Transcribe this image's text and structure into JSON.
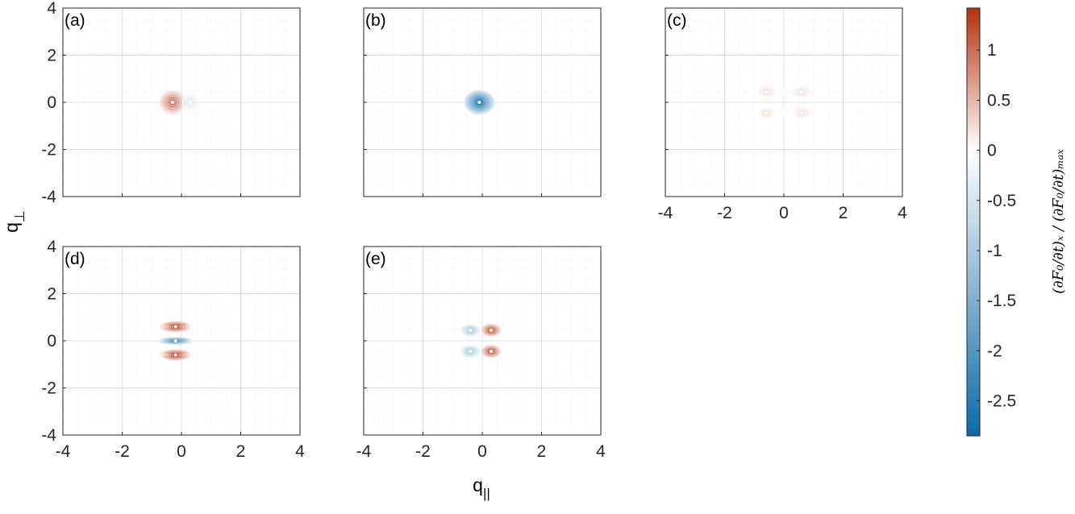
{
  "chart_data": {
    "type": "contour",
    "xlabel": "q",
    "xlabel_sub": "||",
    "ylabel": "q",
    "ylabel_sub": "⊥",
    "xlim": [
      -4,
      4
    ],
    "ylim": [
      -4,
      4
    ],
    "xticks": [
      "-4",
      "-2",
      "0",
      "2",
      "4"
    ],
    "yticks": [
      "-4",
      "-2",
      "0",
      "2",
      "4"
    ],
    "grid": true,
    "minor_grid": true,
    "panels": [
      {
        "label": "(a)",
        "lobes": [
          {
            "x": -0.3,
            "y": 0.0,
            "amp": 1.4,
            "sx": 0.42,
            "sy": 0.48
          },
          {
            "x": 0.3,
            "y": 0.0,
            "amp": -0.6,
            "sx": 0.28,
            "sy": 0.38
          }
        ]
      },
      {
        "label": "(b)",
        "lobes": [
          {
            "x": -0.1,
            "y": 0.0,
            "amp": -2.8,
            "sx": 0.5,
            "sy": 0.5
          }
        ]
      },
      {
        "label": "(c)",
        "lobes": [
          {
            "x": -0.6,
            "y": 0.45,
            "amp": 0.35,
            "sx": 0.3,
            "sy": 0.22
          },
          {
            "x": 0.6,
            "y": 0.45,
            "amp": 0.35,
            "sx": 0.3,
            "sy": 0.22
          },
          {
            "x": -0.6,
            "y": -0.45,
            "amp": 0.35,
            "sx": 0.3,
            "sy": 0.22
          },
          {
            "x": 0.6,
            "y": -0.45,
            "amp": 0.35,
            "sx": 0.3,
            "sy": 0.22
          },
          {
            "x": 0.0,
            "y": 0.4,
            "amp": -0.15,
            "sx": 0.15,
            "sy": 0.18
          },
          {
            "x": 0.0,
            "y": -0.4,
            "amp": -0.15,
            "sx": 0.15,
            "sy": 0.18
          }
        ]
      },
      {
        "label": "(d)",
        "lobes": [
          {
            "x": -0.2,
            "y": 0.6,
            "amp": 1.4,
            "sx": 0.5,
            "sy": 0.22
          },
          {
            "x": -0.2,
            "y": -0.6,
            "amp": 1.4,
            "sx": 0.5,
            "sy": 0.22
          },
          {
            "x": -0.2,
            "y": 0.0,
            "amp": -2.2,
            "sx": 0.55,
            "sy": 0.15
          }
        ]
      },
      {
        "label": "(e)",
        "lobes": [
          {
            "x": -0.4,
            "y": 0.45,
            "amp": -1.2,
            "sx": 0.32,
            "sy": 0.25
          },
          {
            "x": -0.4,
            "y": -0.45,
            "amp": -1.2,
            "sx": 0.32,
            "sy": 0.25
          },
          {
            "x": 0.3,
            "y": 0.45,
            "amp": 1.3,
            "sx": 0.32,
            "sy": 0.25
          },
          {
            "x": 0.3,
            "y": -0.45,
            "amp": 1.3,
            "sx": 0.32,
            "sy": 0.25
          }
        ]
      }
    ],
    "colorbar": {
      "min": -2.85,
      "max": 1.42,
      "ticks": [
        "1",
        "0.5",
        "0",
        "-0.5",
        "-1",
        "-1.5",
        "-2",
        "-2.5"
      ],
      "tick_values": [
        1,
        0.5,
        0,
        -0.5,
        -1,
        -1.5,
        -2,
        -2.5
      ],
      "label": "(∂F₀/∂t)ₓ / (∂F₀/∂t)ₘₐₓ",
      "colors": {
        "negative_end": "#0b6aa8",
        "zero": "#ffffff",
        "positive_end": "#b5300b"
      }
    }
  }
}
